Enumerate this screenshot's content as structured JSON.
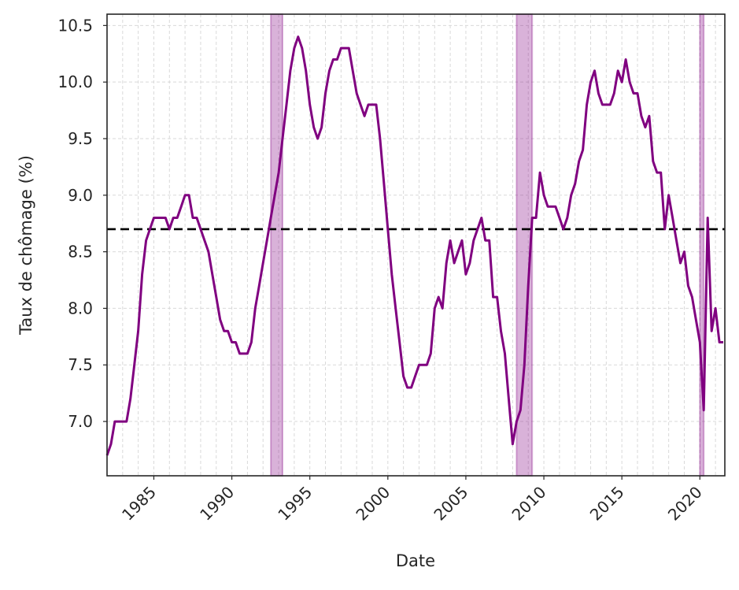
{
  "chart_data": {
    "type": "line",
    "title": "",
    "xlabel": "Date",
    "ylabel": "Taux de chômage (%)",
    "xlim": [
      1982.0,
      2021.6
    ],
    "ylim": [
      6.52,
      10.6
    ],
    "grid": true,
    "x_start": 1982.0,
    "x_step": 0.25,
    "x_ticks": [
      1985,
      1990,
      1995,
      2000,
      2005,
      2010,
      2015,
      2020
    ],
    "x_tick_labels": [
      "1985",
      "1990",
      "1995",
      "2000",
      "2005",
      "2010",
      "2015",
      "2020"
    ],
    "y_ticks": [
      7.0,
      7.5,
      8.0,
      8.5,
      9.0,
      9.5,
      10.0,
      10.5
    ],
    "y_tick_labels": [
      "7.0",
      "7.5",
      "8.0",
      "8.5",
      "9.0",
      "9.5",
      "10.0",
      "10.5"
    ],
    "series": [
      {
        "name": "Taux de chômage",
        "color": "#800080",
        "values": [
          6.7,
          6.8,
          7.0,
          7.0,
          7.0,
          7.0,
          7.2,
          7.5,
          7.8,
          8.3,
          8.6,
          8.7,
          8.8,
          8.8,
          8.8,
          8.8,
          8.7,
          8.8,
          8.8,
          8.9,
          9.0,
          9.0,
          8.8,
          8.8,
          8.7,
          8.6,
          8.5,
          8.3,
          8.1,
          7.9,
          7.8,
          7.8,
          7.7,
          7.7,
          7.6,
          7.6,
          7.6,
          7.7,
          8.0,
          8.2,
          8.4,
          8.6,
          8.8,
          9.0,
          9.2,
          9.5,
          9.8,
          10.1,
          10.3,
          10.4,
          10.3,
          10.1,
          9.8,
          9.6,
          9.5,
          9.6,
          9.9,
          10.1,
          10.2,
          10.2,
          10.3,
          10.3,
          10.3,
          10.1,
          9.9,
          9.8,
          9.7,
          9.8,
          9.8,
          9.8,
          9.5,
          9.1,
          8.7,
          8.3,
          8.0,
          7.7,
          7.4,
          7.3,
          7.3,
          7.4,
          7.5,
          7.5,
          7.5,
          7.6,
          8.0,
          8.1,
          8.0,
          8.4,
          8.6,
          8.4,
          8.5,
          8.6,
          8.3,
          8.4,
          8.6,
          8.7,
          8.8,
          8.6,
          8.6,
          8.1,
          8.1,
          7.8,
          7.6,
          7.2,
          6.8,
          7.0,
          7.1,
          7.5,
          8.2,
          8.8,
          8.8,
          9.2,
          9.0,
          8.9,
          8.9,
          8.9,
          8.8,
          8.7,
          8.8,
          9.0,
          9.1,
          9.3,
          9.4,
          9.8,
          10.0,
          10.1,
          9.9,
          9.8,
          9.8,
          9.8,
          9.9,
          10.1,
          10.0,
          10.2,
          10.0,
          9.9,
          9.9,
          9.7,
          9.6,
          9.7,
          9.3,
          9.2,
          9.2,
          8.7,
          9.0,
          8.8,
          8.6,
          8.4,
          8.5,
          8.2,
          8.1,
          7.9,
          7.7,
          7.1,
          8.8,
          7.8,
          8.0,
          7.7,
          7.7
        ]
      }
    ],
    "reference_line": {
      "value": 8.7,
      "color": "#000000",
      "style": "dashed"
    },
    "shaded_periods": [
      {
        "start": 1992.5,
        "end": 1993.25,
        "color": "#800080"
      },
      {
        "start": 2008.25,
        "end": 2009.25,
        "color": "#800080"
      },
      {
        "start": 2020.0,
        "end": 2020.25,
        "color": "#800080"
      }
    ]
  }
}
